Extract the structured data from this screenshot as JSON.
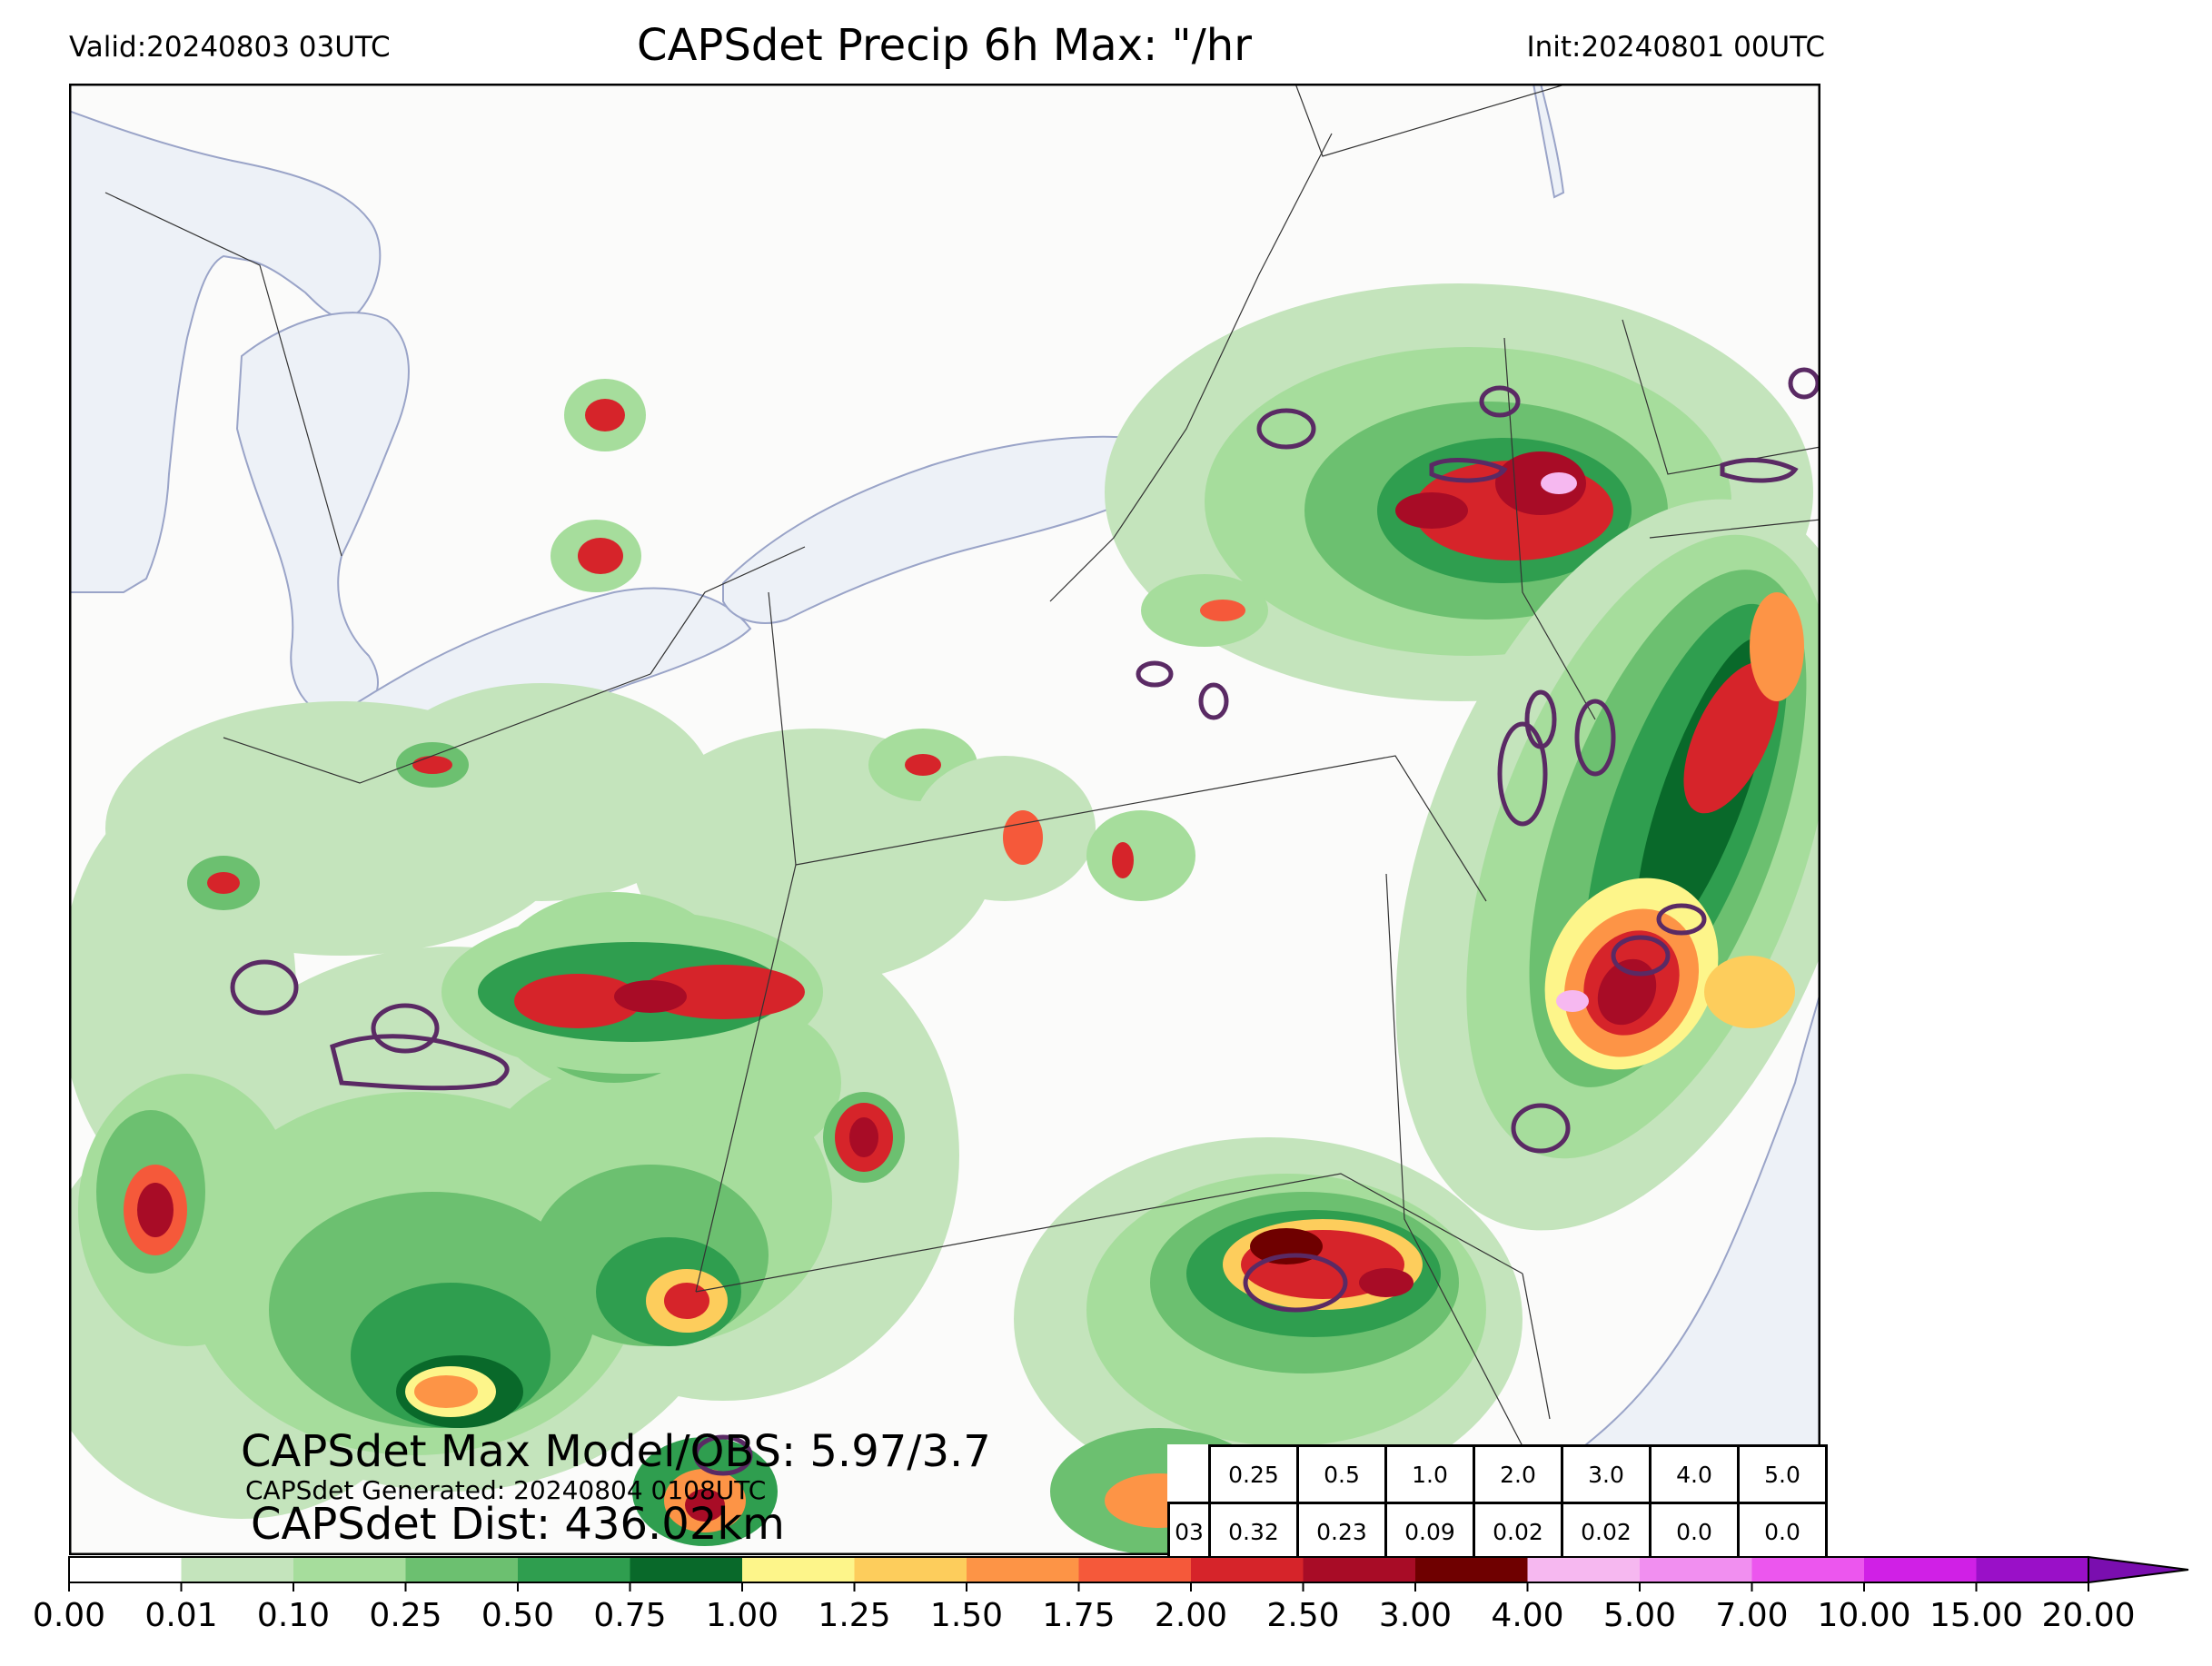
{
  "header": {
    "valid": "Valid:20240803 03UTC",
    "title": "CAPSdet Precip 6h Max: \"/hr",
    "init": "Init:20240801 00UTC"
  },
  "stats": {
    "max_label": "CAPSdet Max Model/OBS: 5.97/3.7",
    "generated": "CAPSdet Generated: 20240804 0108UTC",
    "distance": "CAPSdet Dist: 436.02km"
  },
  "threshold_table": {
    "thresholds": [
      "0.25",
      "0.5",
      "1.0",
      "2.0",
      "3.0",
      "4.0",
      "5.0"
    ],
    "row_label": "03",
    "values": [
      "0.32",
      "0.23",
      "0.09",
      "0.02",
      "0.02",
      "0.0",
      "0.0"
    ]
  },
  "colorbar": {
    "ticks": [
      "0.00",
      "0.01",
      "0.10",
      "0.25",
      "0.50",
      "0.75",
      "1.00",
      "1.25",
      "1.50",
      "1.75",
      "2.00",
      "2.50",
      "3.00",
      "4.00",
      "5.00",
      "7.00",
      "10.00",
      "15.00",
      "20.00"
    ],
    "colors": [
      "#ffffff",
      "#c4e4bc",
      "#a6dd9c",
      "#6cc070",
      "#2f9e4f",
      "#09692a",
      "#fdf58a",
      "#fdcd5c",
      "#fd9446",
      "#f5593a",
      "#d6242a",
      "#a80c26",
      "#6f0000",
      "#f6b8f0",
      "#f18ff0",
      "#ec56ee",
      "#d020e6",
      "#9a10c8",
      "#7a0eaf"
    ],
    "extend": "max"
  },
  "map": {
    "region": "Great Lakes and Northeastern United States",
    "land_color": "#fbfbfa",
    "water_color": "#edf1f7",
    "border_color": "#333333",
    "obs_contour_color": "#5a2a64"
  }
}
